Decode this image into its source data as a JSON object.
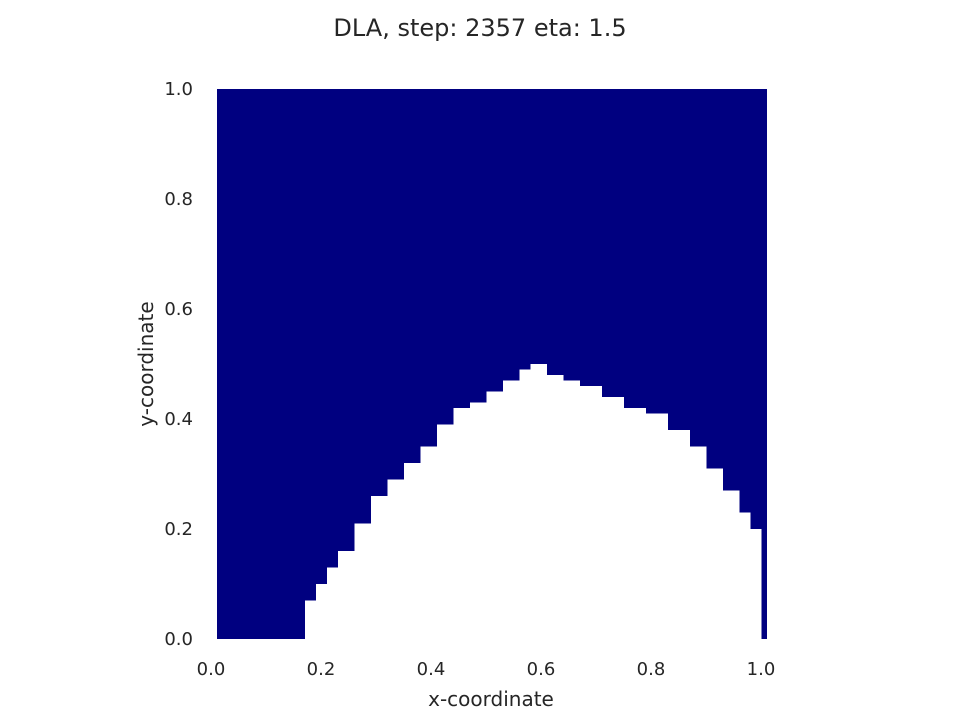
{
  "chart_data": {
    "type": "heatmap",
    "title": "DLA, step: 2357 eta: 1.5",
    "xlabel": "x-coordinate",
    "ylabel": "y-coordinate",
    "xlim": [
      0.0,
      1.0
    ],
    "ylim": [
      0.0,
      1.0
    ],
    "xticks": [
      "0.0",
      "0.2",
      "0.4",
      "0.6",
      "0.8",
      "1.0"
    ],
    "yticks": [
      "0.0",
      "0.2",
      "0.4",
      "0.6",
      "0.8",
      "1.0"
    ],
    "grid": false,
    "colors": {
      "background": "#000080",
      "cluster": "#ffffff"
    },
    "cluster_boundary": {
      "description": "upper boundary (y) of white DLA region as a function of x",
      "x": [
        0.16,
        0.18,
        0.2,
        0.22,
        0.25,
        0.28,
        0.31,
        0.34,
        0.37,
        0.4,
        0.43,
        0.46,
        0.49,
        0.52,
        0.55,
        0.57,
        0.6,
        0.63,
        0.66,
        0.7,
        0.74,
        0.78,
        0.82,
        0.86,
        0.89,
        0.92,
        0.95,
        0.97,
        0.99
      ],
      "y": [
        0.07,
        0.1,
        0.13,
        0.16,
        0.21,
        0.26,
        0.29,
        0.32,
        0.35,
        0.39,
        0.42,
        0.43,
        0.45,
        0.47,
        0.49,
        0.5,
        0.48,
        0.47,
        0.46,
        0.44,
        0.42,
        0.41,
        0.38,
        0.35,
        0.31,
        0.27,
        0.23,
        0.2,
        0.16
      ]
    }
  }
}
